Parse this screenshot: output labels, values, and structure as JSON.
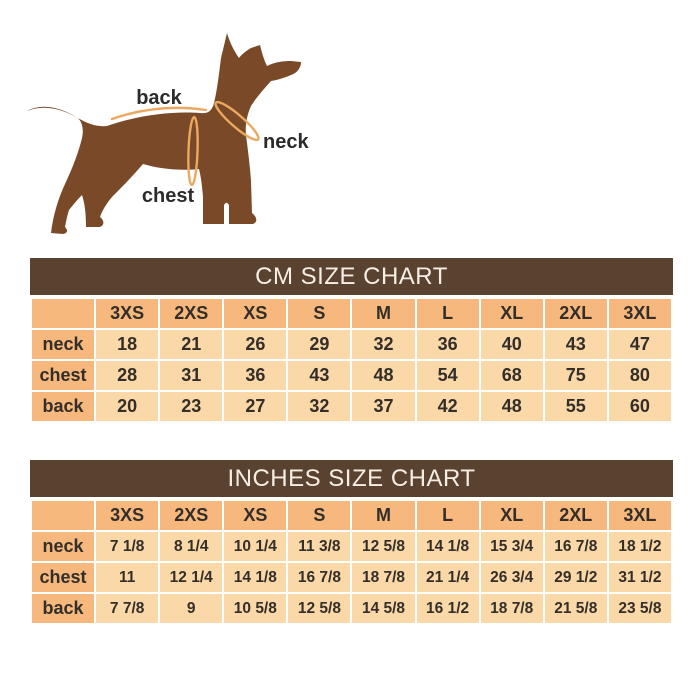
{
  "figure": {
    "back_label": "back",
    "neck_label": "neck",
    "chest_label": "chest"
  },
  "cm_table": {
    "title": "CM SIZE CHART",
    "size_headers": [
      "3XS",
      "2XS",
      "XS",
      "S",
      "M",
      "L",
      "XL",
      "2XL",
      "3XL"
    ],
    "rows": [
      {
        "label": "neck",
        "values": [
          "18",
          "21",
          "26",
          "29",
          "32",
          "36",
          "40",
          "43",
          "47"
        ]
      },
      {
        "label": "chest",
        "values": [
          "28",
          "31",
          "36",
          "43",
          "48",
          "54",
          "68",
          "75",
          "80"
        ]
      },
      {
        "label": "back",
        "values": [
          "20",
          "23",
          "27",
          "32",
          "37",
          "42",
          "48",
          "55",
          "60"
        ]
      }
    ]
  },
  "inches_table": {
    "title": "INCHES SIZE CHART",
    "size_headers": [
      "3XS",
      "2XS",
      "XS",
      "S",
      "M",
      "L",
      "XL",
      "2XL",
      "3XL"
    ],
    "rows": [
      {
        "label": "neck",
        "values": [
          "7 1/8",
          "8 1/4",
          "10 1/4",
          "11 3/8",
          "12 5/8",
          "14 1/8",
          "15 3/4",
          "16 7/8",
          "18 1/2"
        ]
      },
      {
        "label": "chest",
        "values": [
          "11",
          "12 1/4",
          "14 1/8",
          "16 7/8",
          "18 7/8",
          "21 1/4",
          "26 3/4",
          "29 1/2",
          "31 1/2"
        ]
      },
      {
        "label": "back",
        "values": [
          "7 7/8",
          "9",
          "10 5/8",
          "12 5/8",
          "14 5/8",
          "16 1/2",
          "18 7/8",
          "21 5/8",
          "23 5/8"
        ]
      }
    ]
  },
  "colors": {
    "title_bar_bg": "#5A4230",
    "title_bar_text": "#F7EEE3",
    "header_cell_bg": "#F6B87C",
    "data_cell_bg": "#FAD8A8",
    "cell_border": "#FFFFFF",
    "table_text": "#332E29",
    "dog_brown": "#7A4A28",
    "measure_line": "#EBA85F",
    "figure_label_text": "#2B2B2B"
  }
}
